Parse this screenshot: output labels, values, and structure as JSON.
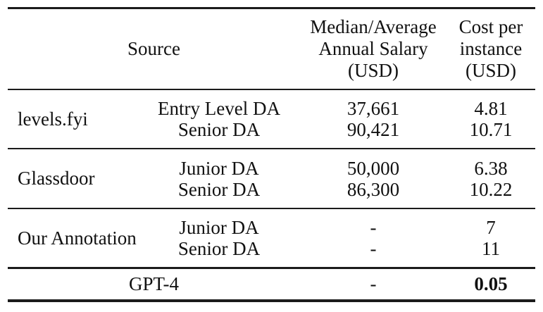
{
  "table": {
    "header": {
      "source": "Source",
      "salary_lines": [
        "Median/Average",
        "Annual Salary",
        "(USD)"
      ],
      "cost_lines": [
        "Cost per",
        "instance",
        "(USD)"
      ]
    },
    "groups": [
      {
        "source": "levels.fyi",
        "rows": [
          {
            "role": "Entry Level DA",
            "salary": "37,661",
            "cost": "4.81"
          },
          {
            "role": "Senior DA",
            "salary": "90,421",
            "cost": "10.71"
          }
        ]
      },
      {
        "source": "Glassdoor",
        "rows": [
          {
            "role": "Junior DA",
            "salary": "50,000",
            "cost": "6.38"
          },
          {
            "role": "Senior DA",
            "salary": "86,300",
            "cost": "10.22"
          }
        ]
      },
      {
        "source": "Our Annotation",
        "rows": [
          {
            "role": "Junior DA",
            "salary": "-",
            "cost": "7"
          },
          {
            "role": "Senior DA",
            "salary": "-",
            "cost": "11"
          }
        ]
      }
    ],
    "footer": {
      "label": "GPT-4",
      "salary": "-",
      "cost": "0.05"
    },
    "colors": {
      "text": "#111111",
      "rule": "#1b1b1b",
      "background": "#ffffff"
    }
  }
}
